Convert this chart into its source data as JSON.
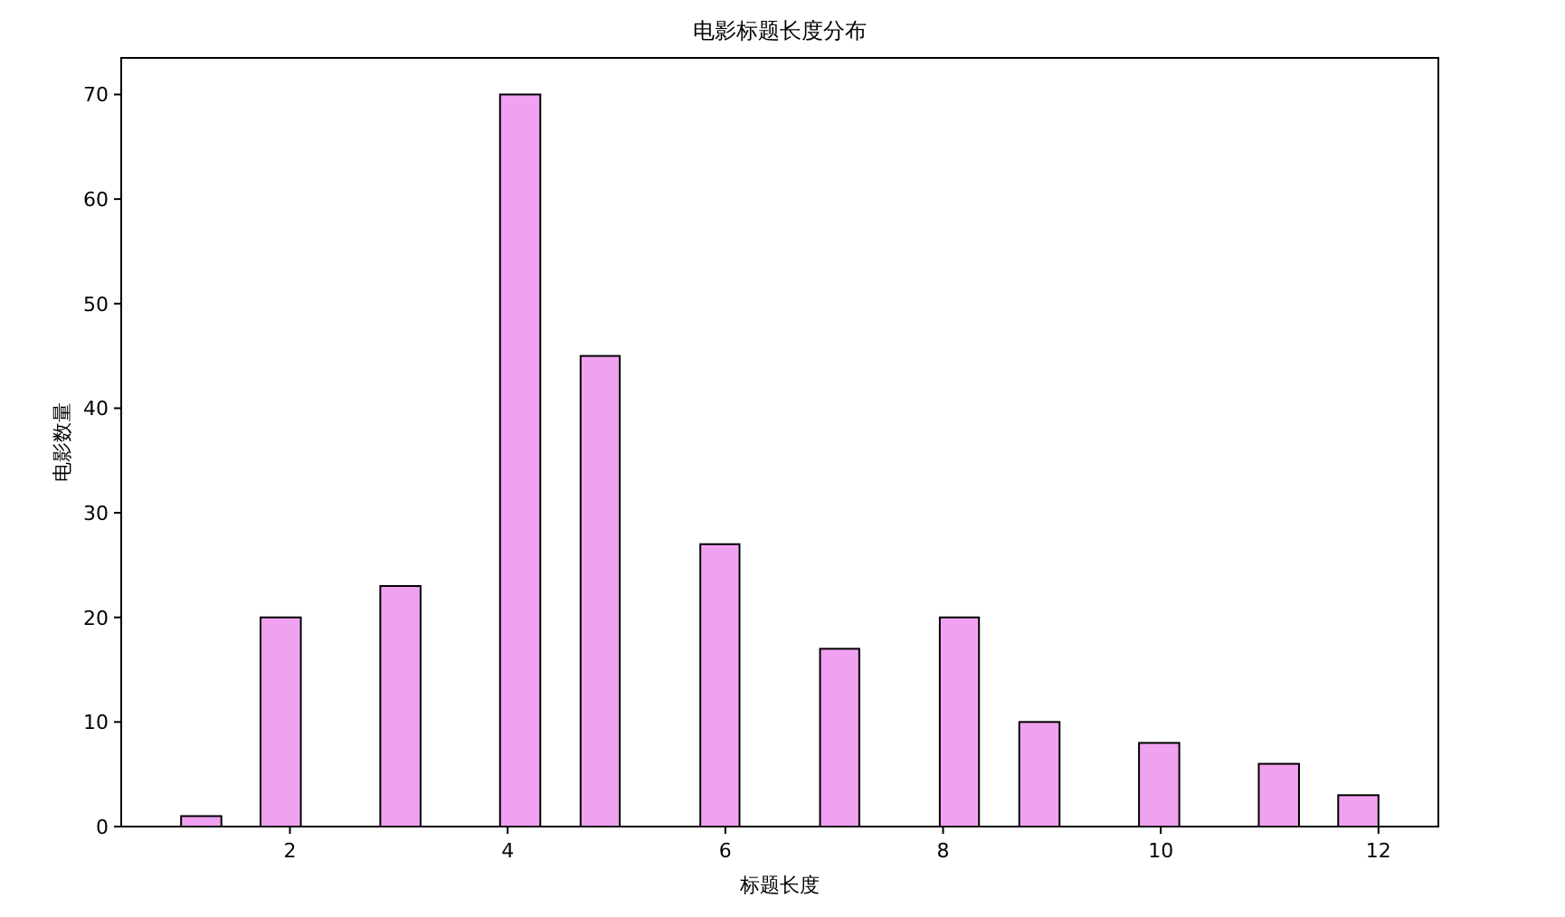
{
  "chart_data": {
    "type": "histogram",
    "title": "电影标题长度分布",
    "xlabel": "标题长度",
    "ylabel": "电影数量",
    "bins": [
      1,
      1.37,
      1.73,
      2.1,
      2.83,
      3.2,
      3.93,
      4.3,
      4.67,
      5.03,
      5.77,
      6.13,
      6.87,
      7.23,
      7.97,
      8.33,
      8.7,
      9.07,
      9.8,
      10.17,
      10.9,
      11.27,
      11.63,
      12
    ],
    "values": [
      1,
      0,
      20,
      0,
      23,
      0,
      70,
      0,
      45,
      0,
      27,
      0,
      17,
      0,
      20,
      0,
      10,
      0,
      8,
      0,
      6,
      0,
      3
    ],
    "color": "#f0a2f0",
    "xlim": [
      0.45,
      12.55
    ],
    "ylim": [
      0,
      73.5
    ],
    "xticks": [
      2,
      4,
      6,
      8,
      10,
      12
    ],
    "yticks": [
      0,
      10,
      20,
      30,
      40,
      50,
      60,
      70
    ]
  }
}
